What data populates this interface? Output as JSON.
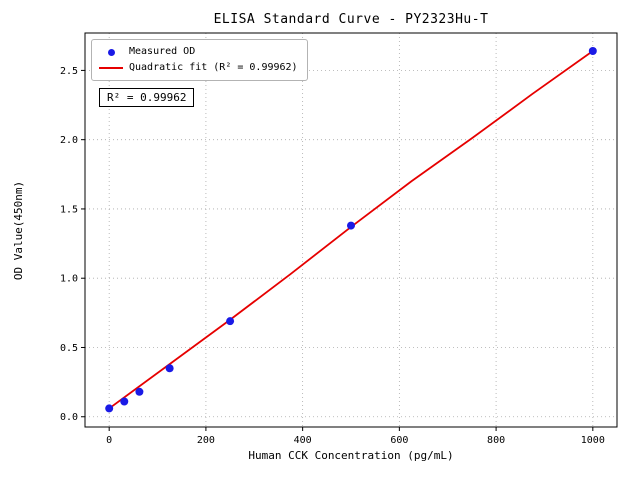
{
  "chart_data": {
    "type": "scatter",
    "title": "ELISA Standard Curve - PY2323Hu-T",
    "xlabel": "Human CCK Concentration (pg/mL)",
    "ylabel": "OD Value(450nm)",
    "xlim": [
      -50,
      1050
    ],
    "ylim": [
      -0.074,
      2.77
    ],
    "x_ticks": [
      0,
      200,
      400,
      600,
      800,
      1000
    ],
    "x_tick_labels": [
      "0",
      "200",
      "400",
      "600",
      "800",
      "1000"
    ],
    "y_ticks": [
      0.0,
      0.5,
      1.0,
      1.5,
      2.0,
      2.5
    ],
    "y_tick_labels": [
      "0.0",
      "0.5",
      "1.0",
      "1.5",
      "2.0",
      "2.5"
    ],
    "grid": "dotted",
    "legend_position": "upper-left",
    "series": [
      {
        "name": "Measured OD",
        "type": "scatter",
        "color": "#1a1ae6",
        "x": [
          0,
          31.2,
          62.5,
          125,
          250,
          500,
          1000
        ],
        "y": [
          0.06,
          0.11,
          0.18,
          0.35,
          0.69,
          1.38,
          2.64
        ]
      },
      {
        "name": "Quadratic fit (R² = 0.99962)",
        "type": "line",
        "color": "#e60000",
        "x": [
          0,
          125,
          250,
          375,
          500,
          625,
          750,
          875,
          1000
        ],
        "y": [
          0.06,
          0.38,
          0.7,
          1.03,
          1.37,
          1.7,
          2.01,
          2.33,
          2.64
        ]
      }
    ],
    "annotation": "R² = 0.99962",
    "colors": {
      "grid": "#aaaaaa",
      "axis": "#000000",
      "point": "#1a1ae6",
      "fit_line": "#e60000"
    }
  }
}
